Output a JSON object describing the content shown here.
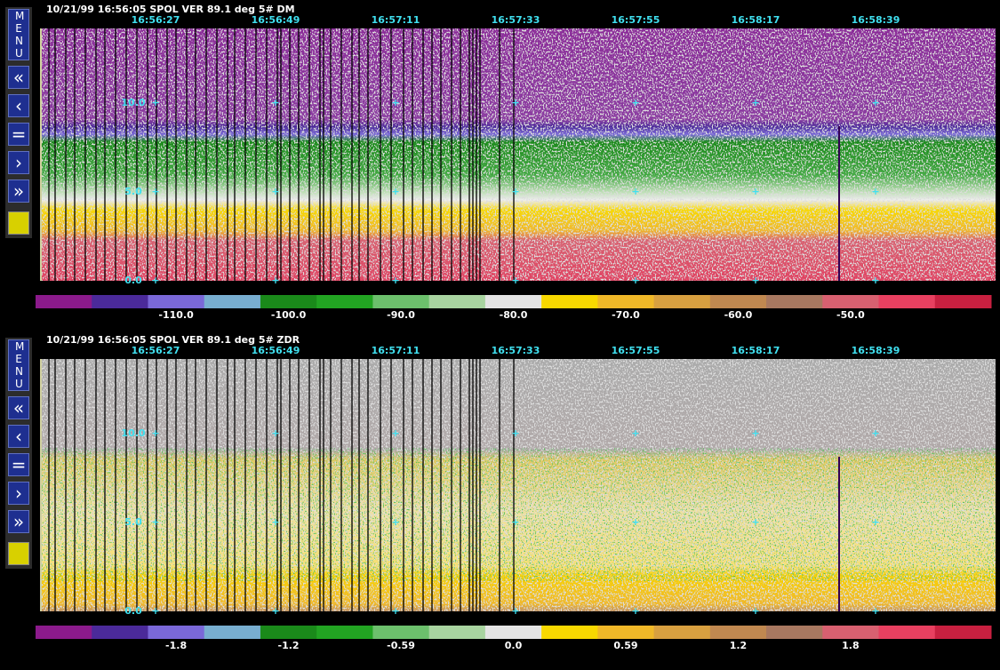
{
  "menu": {
    "label": "MENU",
    "buttons": [
      "«",
      "‹",
      "=",
      "›",
      "»"
    ]
  },
  "colorbar_colors": [
    "#8b1a8b",
    "#4b2a9a",
    "#7a68d8",
    "#78aed0",
    "#1a8a1a",
    "#22a422",
    "#6cc06c",
    "#a8d4a0",
    "#e4e4e4",
    "#f8d800",
    "#f0b828",
    "#d8a040",
    "#c08850",
    "#a87860",
    "#d86070",
    "#e84060",
    "#c82040"
  ],
  "panels": [
    {
      "header": "10/21/99 16:56:05  SPOL    VER   89.1 deg   5# DM",
      "times": [
        "16:56:27",
        "16:56:49",
        "16:57:11",
        "16:57:33",
        "16:57:55",
        "16:58:17",
        "16:58:39"
      ],
      "range_labels": [
        "10.0",
        "5.0",
        "0.0"
      ],
      "colorbar_labels": [
        "-110.0",
        "-100.0",
        "-90.0",
        "-80.0",
        "-70.0",
        "-60.0",
        "-50.0"
      ]
    },
    {
      "header": "10/21/99 16:56:05  SPOL    VER   89.1 deg   5# ZDR",
      "times": [
        "16:56:27",
        "16:56:49",
        "16:57:11",
        "16:57:33",
        "16:57:55",
        "16:58:17",
        "16:58:39"
      ],
      "range_labels": [
        "10.0",
        "5.0",
        "0.0"
      ],
      "colorbar_labels": [
        "-1.8",
        "-1.2",
        "-0.59",
        "0.0",
        "0.59",
        "1.2",
        "1.8"
      ]
    }
  ]
}
